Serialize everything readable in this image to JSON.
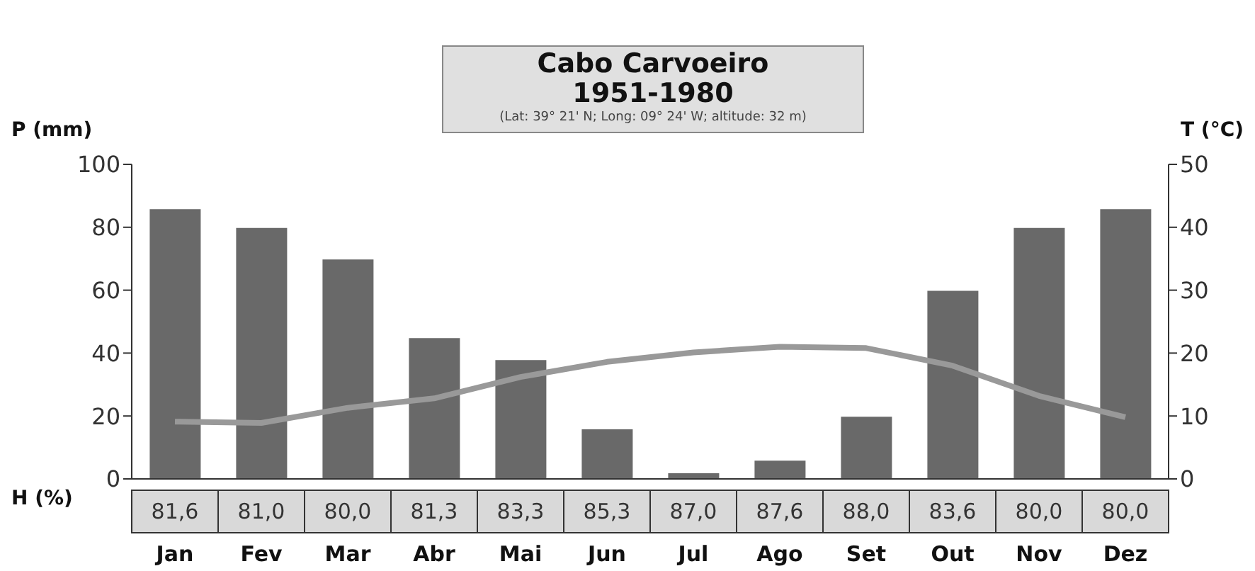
{
  "chart_data": {
    "type": "bar",
    "title": "Cabo Carvoeiro",
    "subtitle": "1951-1980",
    "annotations": [
      "(Lat: 39° 21' N; Long: 09° 24' W; altitude: 32 m)",
      "H (%)",
      "81,6",
      "81,0",
      "80,0",
      "81,3",
      "83,3",
      "85,3",
      "87,0",
      "87,6",
      "88,0",
      "83,6",
      "80,0",
      "80,0"
    ],
    "ylabel": "P (mm)",
    "y2label": "T (°C)",
    "categories": [
      "Jan",
      "Fev",
      "Mar",
      "Abr",
      "Mai",
      "Jun",
      "Jul",
      "Ago",
      "Set",
      "Out",
      "Nov",
      "Dez"
    ],
    "series": [
      {
        "color": "#696969",
        "values": [
          86,
          80,
          70,
          45,
          38,
          16,
          2,
          6,
          20,
          60,
          80,
          86
        ]
      },
      {
        "type": "line",
        "axis": "y2",
        "color": "#999999",
        "values": [
          9.1,
          8.9,
          11.3,
          12.8,
          16.2,
          18.6,
          20.1,
          21.0,
          20.8,
          18.0,
          13.2,
          9.8
        ]
      }
    ],
    "ylim": [
      0,
      100
    ],
    "yticks": [
      0,
      20,
      40,
      60,
      80,
      100
    ],
    "y2lim": [
      0,
      50
    ],
    "y2ticks": [
      0,
      10,
      20,
      30,
      40,
      50
    ],
    "grid": false,
    "legend": false,
    "marker": "none",
    "line_style": "solid"
  }
}
